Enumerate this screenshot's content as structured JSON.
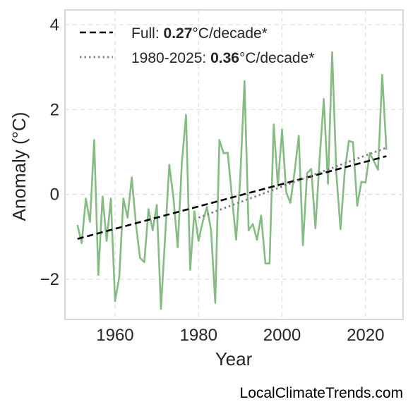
{
  "chart_data": {
    "type": "line",
    "title": "",
    "xlabel": "Year",
    "ylabel": "Anomaly (°C)",
    "xlim": [
      1948,
      2029
    ],
    "ylim": [
      -2.95,
      4.35
    ],
    "xticks": [
      1960,
      1980,
      2000,
      2020
    ],
    "yticks": [
      4,
      2,
      0,
      -2
    ],
    "ytick_labels": [
      "4",
      "2",
      "0",
      "−2"
    ],
    "grid": true,
    "legend_position": "top-left",
    "colors": {
      "series": "#86bc84",
      "full_trend": "#000000",
      "recent_trend": "#808080"
    },
    "series": [
      {
        "x": [
          1951,
          1952,
          1953,
          1954,
          1955,
          1956,
          1957,
          1958,
          1959,
          1960,
          1961,
          1962,
          1963,
          1964,
          1965,
          1966,
          1967,
          1968,
          1969,
          1970,
          1971,
          1972,
          1973,
          1974,
          1975,
          1976,
          1977,
          1978,
          1979,
          1980,
          1981,
          1982,
          1983,
          1984,
          1985,
          1986,
          1987,
          1988,
          1989,
          1990,
          1991,
          1992,
          1993,
          1994,
          1995,
          1996,
          1997,
          1998,
          1999,
          2000,
          2001,
          2002,
          2003,
          2004,
          2005,
          2006,
          2007,
          2008,
          2009,
          2010,
          2011,
          2012,
          2013,
          2014,
          2015,
          2016,
          2017,
          2018,
          2019,
          2020,
          2021,
          2022,
          2023,
          2024,
          2025
        ],
        "values": [
          -0.72,
          -1.15,
          -0.1,
          -0.65,
          1.28,
          -1.9,
          -0.05,
          -1.1,
          -0.1,
          -2.52,
          -1.95,
          -0.1,
          -0.55,
          0.4,
          -0.7,
          -1.5,
          -1.6,
          -0.35,
          -0.85,
          -0.25,
          -2.7,
          -1.0,
          0.7,
          -0.1,
          -1.25,
          0.75,
          1.87,
          -1.78,
          -0.4,
          -1.1,
          -0.65,
          -0.3,
          -0.85,
          -2.56,
          1.28,
          0.97,
          0.98,
          -0.05,
          -1.07,
          0.42,
          2.67,
          -0.85,
          -0.7,
          -1.07,
          -0.5,
          -1.63,
          -1.63,
          1.65,
          0.2,
          1.53,
          0.05,
          -0.2,
          0.52,
          1.38,
          -1.2,
          0.5,
          0.6,
          -0.8,
          0.82,
          2.25,
          0.25,
          3.35,
          0.5,
          -0.82,
          0.52,
          1.26,
          1.23,
          -0.27,
          0.3,
          0.28,
          0.97,
          0.78,
          0.58,
          2.82,
          1.05
        ]
      }
    ],
    "trend_lines": [
      {
        "label_prefix": "Full: ",
        "label_value": "0.27",
        "label_suffix": "°C/decade*",
        "style": "dashed",
        "x": [
          1951,
          2025
        ],
        "y": [
          -1.05,
          0.9
        ]
      },
      {
        "label_prefix": "1980-2025: ",
        "label_value": "0.36",
        "label_suffix": "°C/decade*",
        "style": "dotted",
        "x": [
          1980,
          2025
        ],
        "y": [
          -0.55,
          1.1
        ]
      }
    ]
  },
  "watermark": "LocalClimateTrends.com"
}
